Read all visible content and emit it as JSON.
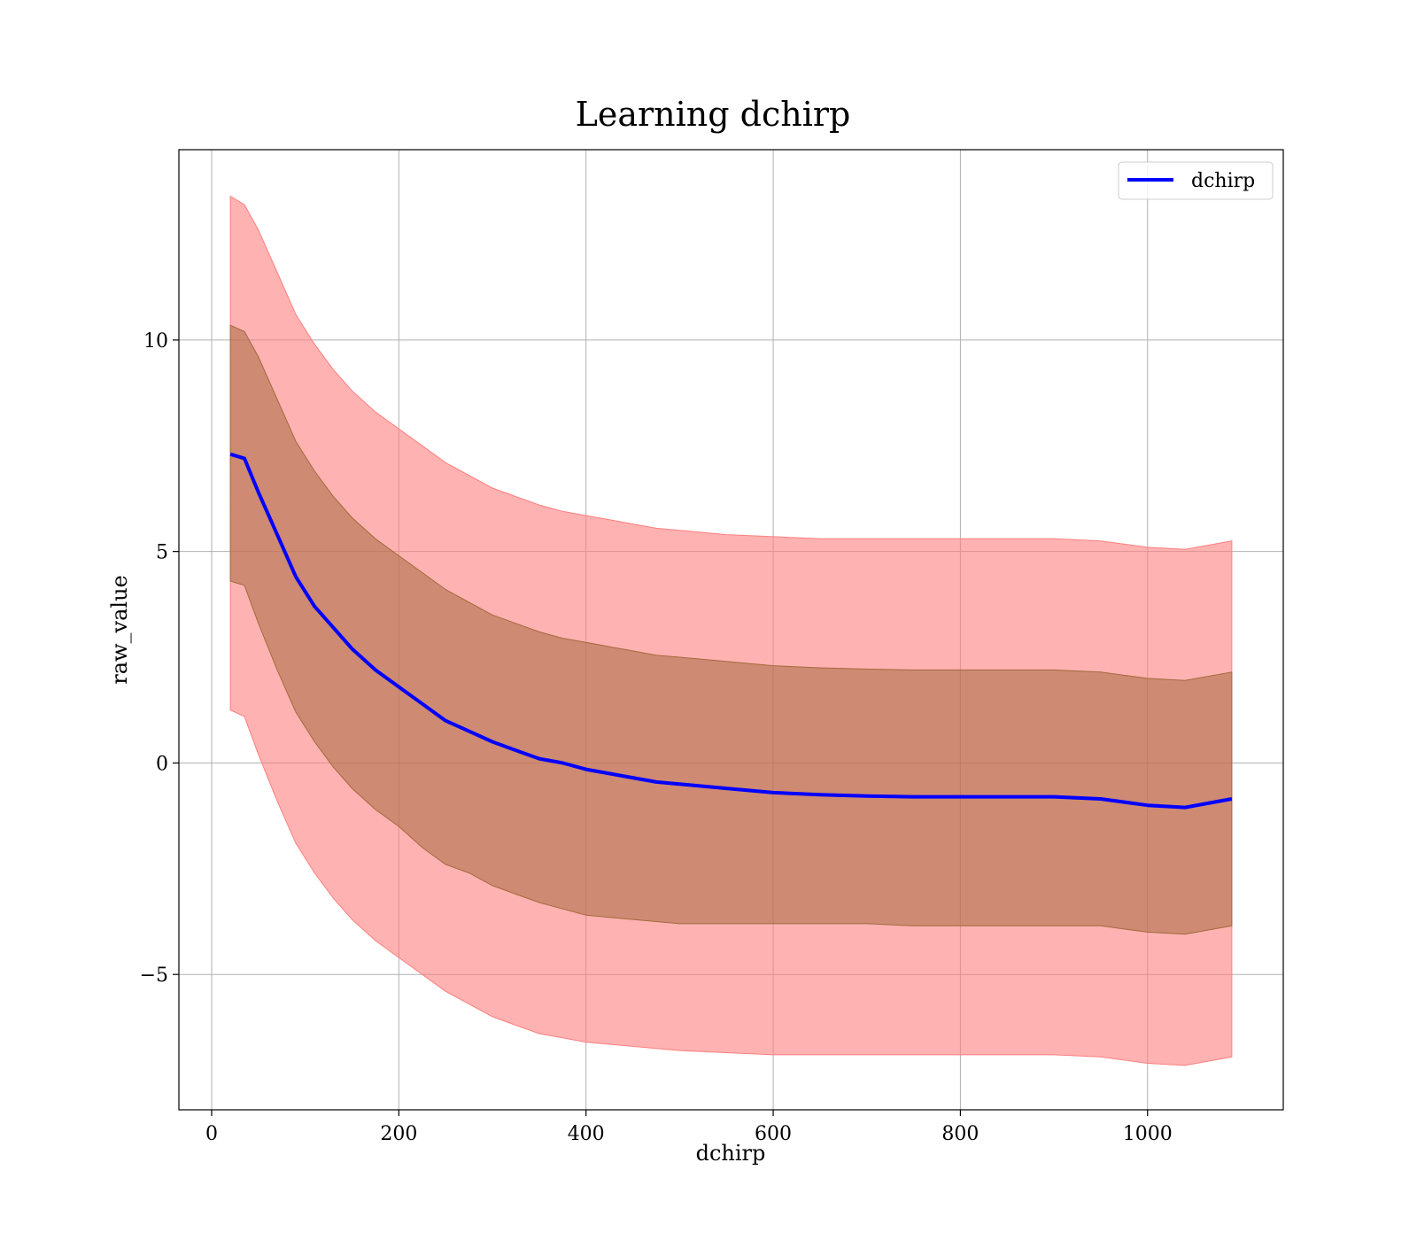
{
  "chart_data": {
    "type": "line",
    "title": "Learning dchirp",
    "xlabel": "dchirp",
    "ylabel": "raw_value",
    "xlim": [
      -35,
      1145
    ],
    "ylim": [
      -8.2,
      14.5
    ],
    "x_ticks": [
      0,
      200,
      400,
      600,
      800,
      1000
    ],
    "x_tick_labels": [
      "0",
      "200",
      "400",
      "600",
      "800",
      "1000"
    ],
    "y_ticks": [
      -5,
      0,
      5,
      10
    ],
    "y_tick_labels": [
      "−5",
      "0",
      "5",
      "10"
    ],
    "grid": true,
    "legend": {
      "placement": "top-right",
      "entries": [
        "dchirp"
      ]
    },
    "colors": {
      "line": "#0000ff",
      "outer_band": "#ff7f7f",
      "inner_band": "#a56a3e",
      "grid": "#b0b0b0"
    },
    "series": [
      {
        "name": "dchirp",
        "x": [
          20,
          35,
          50,
          70,
          90,
          110,
          130,
          150,
          175,
          200,
          225,
          250,
          275,
          300,
          325,
          350,
          375,
          400,
          425,
          450,
          475,
          500,
          550,
          600,
          650,
          700,
          750,
          800,
          850,
          900,
          950,
          1000,
          1040,
          1090
        ],
        "mean": [
          7.3,
          7.2,
          6.4,
          5.4,
          4.4,
          3.7,
          3.2,
          2.7,
          2.2,
          1.8,
          1.4,
          1.0,
          0.75,
          0.5,
          0.3,
          0.1,
          0.0,
          -0.15,
          -0.25,
          -0.35,
          -0.45,
          -0.5,
          -0.6,
          -0.7,
          -0.75,
          -0.78,
          -0.8,
          -0.8,
          -0.8,
          -0.8,
          -0.85,
          -1.0,
          -1.05,
          -0.85
        ],
        "inner_upper": [
          10.35,
          10.2,
          9.6,
          8.6,
          7.6,
          6.9,
          6.3,
          5.8,
          5.3,
          4.9,
          4.5,
          4.1,
          3.8,
          3.5,
          3.3,
          3.1,
          2.95,
          2.85,
          2.75,
          2.65,
          2.55,
          2.5,
          2.4,
          2.3,
          2.25,
          2.22,
          2.2,
          2.2,
          2.2,
          2.2,
          2.15,
          2.0,
          1.95,
          2.15
        ],
        "inner_lower": [
          4.3,
          4.2,
          3.3,
          2.2,
          1.2,
          0.5,
          -0.1,
          -0.6,
          -1.1,
          -1.5,
          -2.0,
          -2.4,
          -2.6,
          -2.9,
          -3.1,
          -3.3,
          -3.45,
          -3.6,
          -3.65,
          -3.7,
          -3.75,
          -3.8,
          -3.8,
          -3.8,
          -3.8,
          -3.8,
          -3.85,
          -3.85,
          -3.85,
          -3.85,
          -3.85,
          -4.0,
          -4.05,
          -3.85
        ],
        "outer_upper": [
          13.4,
          13.2,
          12.6,
          11.6,
          10.6,
          9.9,
          9.3,
          8.8,
          8.3,
          7.9,
          7.5,
          7.1,
          6.8,
          6.5,
          6.3,
          6.1,
          5.95,
          5.85,
          5.75,
          5.65,
          5.55,
          5.5,
          5.4,
          5.35,
          5.3,
          5.3,
          5.3,
          5.3,
          5.3,
          5.3,
          5.25,
          5.1,
          5.05,
          5.25
        ],
        "outer_lower": [
          1.25,
          1.1,
          0.2,
          -0.9,
          -1.9,
          -2.6,
          -3.2,
          -3.7,
          -4.2,
          -4.6,
          -5.0,
          -5.4,
          -5.7,
          -6.0,
          -6.2,
          -6.4,
          -6.5,
          -6.6,
          -6.65,
          -6.7,
          -6.75,
          -6.8,
          -6.85,
          -6.9,
          -6.9,
          -6.9,
          -6.9,
          -6.9,
          -6.9,
          -6.9,
          -6.95,
          -7.1,
          -7.15,
          -6.95
        ]
      }
    ]
  }
}
